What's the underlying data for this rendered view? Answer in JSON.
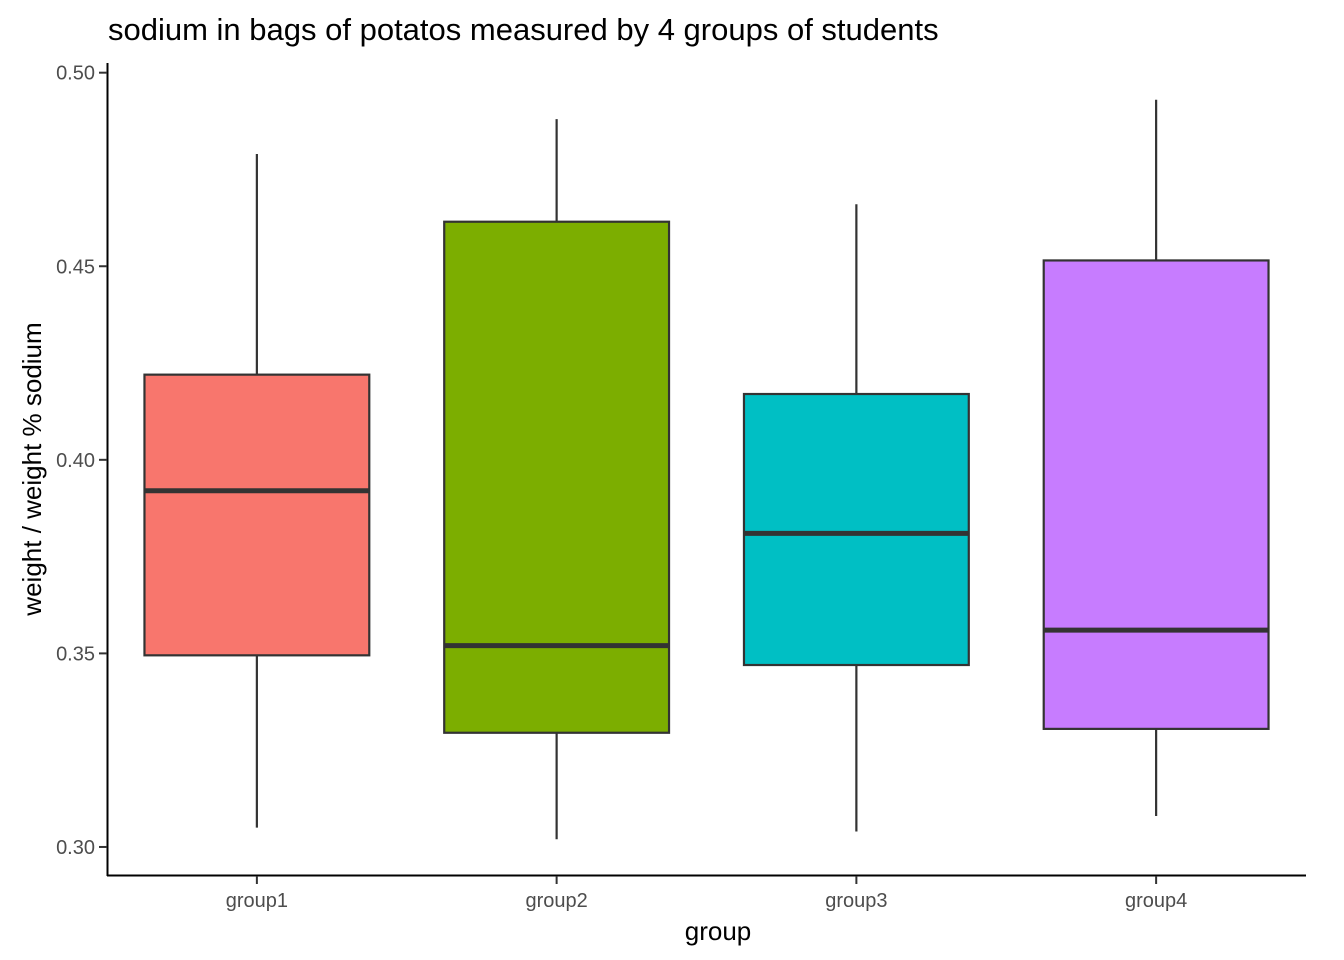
{
  "chart_data": {
    "type": "boxplot",
    "title": "sodium in bags of potatos measured by 4 groups of students",
    "xlabel": "group",
    "ylabel": "weight / weight % sodium",
    "ylim": [
      0.2925,
      0.5025
    ],
    "yticks": [
      0.3,
      0.35,
      0.4,
      0.45,
      0.5
    ],
    "ytick_labels": [
      "0.30",
      "0.35",
      "0.40",
      "0.45",
      "0.50"
    ],
    "grid": false,
    "legend": "none",
    "categories": [
      "group1",
      "group2",
      "group3",
      "group4"
    ],
    "boxes": [
      {
        "category": "group1",
        "min": 0.305,
        "q1": 0.3495,
        "median": 0.392,
        "q3": 0.422,
        "max": 0.479,
        "color": "#F8766D"
      },
      {
        "category": "group2",
        "min": 0.302,
        "q1": 0.3295,
        "median": 0.352,
        "q3": 0.4615,
        "max": 0.488,
        "color": "#7CAE00"
      },
      {
        "category": "group3",
        "min": 0.304,
        "q1": 0.347,
        "median": 0.381,
        "q3": 0.417,
        "max": 0.466,
        "color": "#00BFC4"
      },
      {
        "category": "group4",
        "min": 0.308,
        "q1": 0.3305,
        "median": 0.356,
        "q3": 0.4515,
        "max": 0.493,
        "color": "#C77CFF"
      }
    ]
  }
}
